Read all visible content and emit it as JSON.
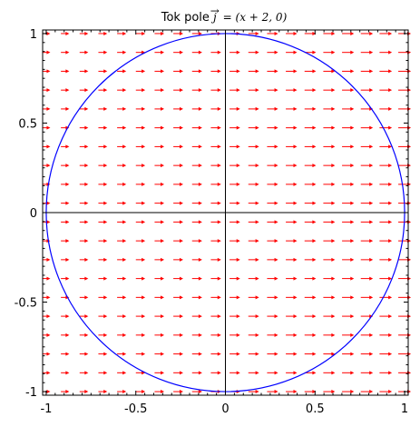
{
  "chart_data": {
    "type": "vector-field",
    "title": {
      "prefix": "Tok pole ",
      "symbol": "j",
      "arrow": "→",
      "equals": " = ",
      "expression": "(x + 2, 0)"
    },
    "xlabel": "",
    "ylabel": "",
    "xlim": [
      -1.02,
      1.02
    ],
    "ylim": [
      -1.02,
      1.02
    ],
    "x_ticks": [
      {
        "value": -1,
        "label": "-1"
      },
      {
        "value": -0.5,
        "label": "-0.5"
      },
      {
        "value": 0,
        "label": "0"
      },
      {
        "value": 0.5,
        "label": "0.5"
      },
      {
        "value": 1,
        "label": "1"
      }
    ],
    "y_ticks": [
      {
        "value": 1,
        "label": "1"
      },
      {
        "value": 0.5,
        "label": "0.5"
      },
      {
        "value": 0,
        "label": "0"
      },
      {
        "value": -0.5,
        "label": "-0.5"
      },
      {
        "value": -1,
        "label": "-1"
      }
    ],
    "field": {
      "formula": "(x + 2, 0)",
      "color": "#ff0000",
      "grid": {
        "x_min": -1,
        "x_max": 1,
        "nx": 20,
        "y_min": -1,
        "y_max": 1,
        "ny": 20
      }
    },
    "curve": {
      "shape": "circle",
      "center": [
        0,
        0
      ],
      "radius": 1,
      "color": "#0000ff"
    },
    "axes_color": "#000000",
    "grid": false
  }
}
